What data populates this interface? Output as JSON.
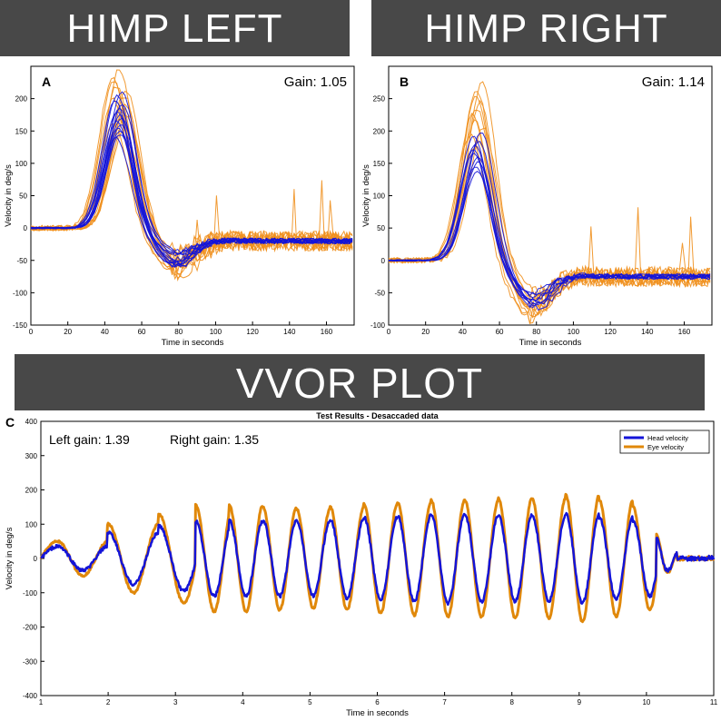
{
  "banners": {
    "left": "HIMP LEFT",
    "right": "HIMP RIGHT",
    "vvor": "VVOR PLOT"
  },
  "colors": {
    "head": "#1414d8",
    "eye": "#f0901e",
    "eye_thick": "#e0880a",
    "banner_bg": "#484848",
    "axis": "#000000"
  },
  "chart_data": [
    {
      "id": "A",
      "type": "line",
      "panel_label": "A",
      "annotation": "Gain: 1.05",
      "xlabel": "Time in seconds",
      "ylabel": "Velocity in deg/s",
      "xlim": [
        0,
        175
      ],
      "ylim": [
        -150,
        250
      ],
      "xticks": [
        0,
        20,
        40,
        60,
        80,
        100,
        120,
        140,
        160
      ],
      "yticks": [
        -150,
        -100,
        -50,
        0,
        50,
        100,
        150,
        200
      ],
      "peak_time": 48,
      "head_peaks": [
        210,
        205,
        198,
        192,
        186,
        180,
        175,
        170,
        165,
        160,
        155,
        150,
        145,
        140
      ],
      "eye_peaks": [
        245,
        235,
        228,
        220,
        212,
        205,
        198,
        190,
        182,
        175,
        168,
        160,
        150
      ],
      "undershoot": -45,
      "baseline": -20
    },
    {
      "id": "B",
      "type": "line",
      "panel_label": "B",
      "annotation": "Gain: 1.14",
      "xlabel": "Time in seconds",
      "ylabel": "Velocity in deg/s",
      "xlim": [
        0,
        175
      ],
      "ylim": [
        -100,
        300
      ],
      "xticks": [
        0,
        20,
        40,
        60,
        80,
        100,
        120,
        140,
        160
      ],
      "yticks": [
        -100,
        -50,
        0,
        50,
        100,
        150,
        200,
        250
      ],
      "peak_time": 48,
      "head_peaks": [
        198,
        192,
        185,
        178,
        172,
        166,
        160,
        152,
        145,
        138
      ],
      "eye_peaks": [
        275,
        265,
        255,
        245,
        235,
        225,
        215,
        205,
        195,
        185,
        175
      ],
      "undershoot": -55,
      "baseline": -25
    },
    {
      "id": "C",
      "type": "line",
      "panel_label": "C",
      "title": "Test Results - Desaccaded data",
      "annotations": [
        "Left gain: 1.39",
        "Right gain: 1.35"
      ],
      "xlabel": "Time in seconds",
      "ylabel": "Velocity in deg/s",
      "xlim": [
        1,
        11
      ],
      "ylim": [
        -400,
        400
      ],
      "xticks": [
        1,
        2,
        3,
        4,
        5,
        6,
        7,
        8,
        9,
        10,
        11
      ],
      "yticks": [
        -400,
        -300,
        -200,
        -100,
        0,
        100,
        200,
        300,
        400
      ],
      "legend": [
        "Head velocity",
        "Eye velocity"
      ],
      "legend_position": "top-right",
      "cycle_times": [
        1.25,
        2.0,
        2.75,
        3.3,
        3.8,
        4.3,
        4.8,
        5.3,
        5.8,
        6.3,
        6.8,
        7.3,
        7.8,
        8.3,
        8.8,
        9.3,
        9.8,
        10.15
      ],
      "head_amplitudes": [
        35,
        75,
        95,
        110,
        110,
        110,
        110,
        115,
        120,
        125,
        130,
        125,
        125,
        125,
        130,
        120,
        110,
        60
      ],
      "eye_amplitudes": [
        50,
        100,
        130,
        155,
        155,
        150,
        145,
        150,
        160,
        165,
        170,
        170,
        175,
        175,
        185,
        170,
        150,
        70
      ]
    }
  ]
}
